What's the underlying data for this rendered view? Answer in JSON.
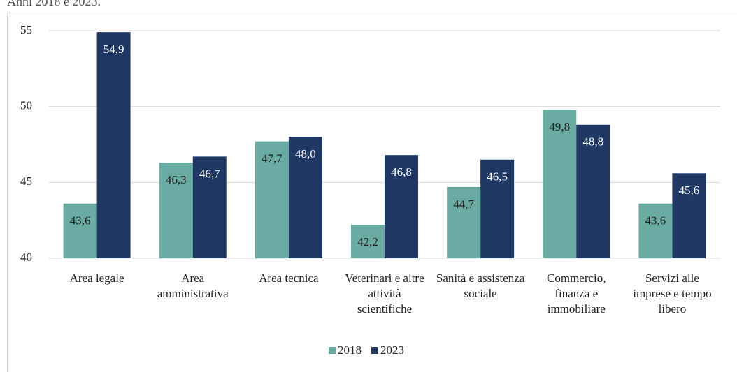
{
  "chart_data": {
    "type": "bar",
    "subtitle": "Anni 2018 e 2023.",
    "categories": [
      "Area legale",
      "Area amministrativa",
      "Area tecnica",
      "Veterinari e altre attività scientifiche",
      "Sanità e assistenza sociale",
      "Commercio, finanza e immobiliare",
      "Servizi alle imprese e tempo libero"
    ],
    "series": [
      {
        "name": "2018",
        "color": "#6aaba3",
        "values": [
          43.6,
          46.3,
          47.7,
          42.2,
          44.7,
          49.8,
          43.6
        ],
        "value_labels": [
          "43,6",
          "46,3",
          "47,7",
          "42,2",
          "44,7",
          "49,8",
          "43,6"
        ]
      },
      {
        "name": "2023",
        "color": "#1f3864",
        "values": [
          54.9,
          46.7,
          48.0,
          46.8,
          46.5,
          48.8,
          45.6
        ],
        "value_labels": [
          "54,9",
          "46,7",
          "48,0",
          "46,8",
          "46,5",
          "48,8",
          "45,6"
        ]
      }
    ],
    "ylim": [
      40,
      55
    ],
    "yticks": [
      40,
      45,
      50,
      55
    ],
    "grid": true,
    "legend": "bottom"
  }
}
